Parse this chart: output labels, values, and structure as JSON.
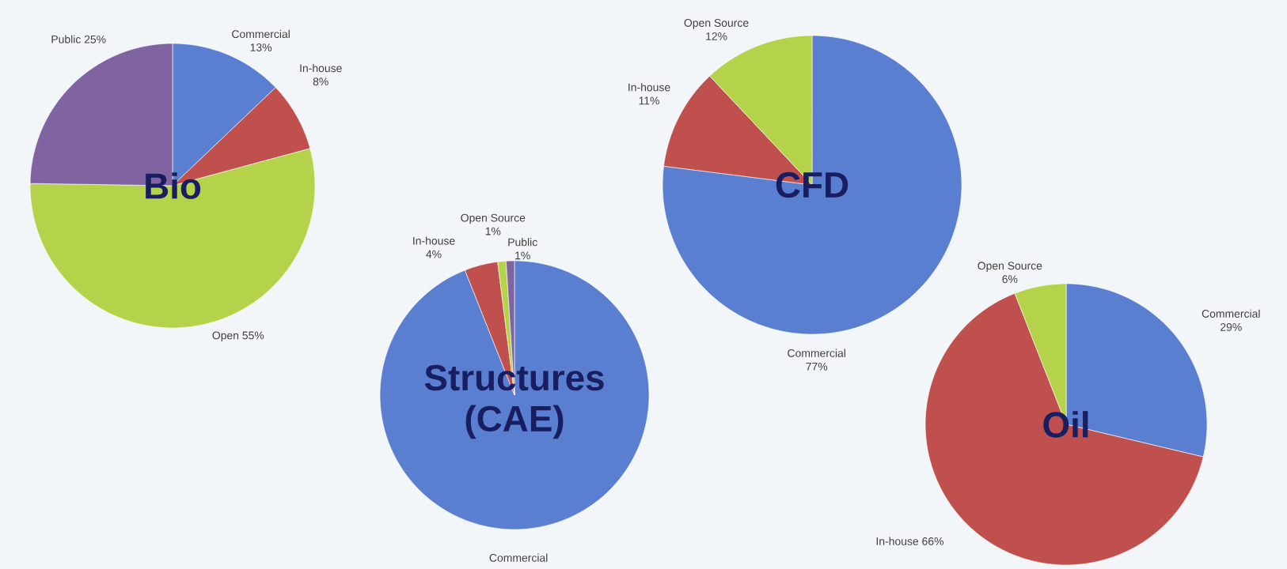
{
  "chart_data": [
    {
      "type": "pie",
      "title": "Bio",
      "categories": [
        "Commercial",
        "In-house",
        "Open",
        "Public"
      ],
      "values": [
        13,
        8,
        55,
        25
      ],
      "colors": [
        "#5b7fd0",
        "#c0504d",
        "#b5d34a",
        "#8064a2"
      ],
      "value_labels": [
        "13%",
        "8%",
        "55%",
        "25%"
      ]
    },
    {
      "type": "pie",
      "title": "Structures (CAE)",
      "categories": [
        "Commercial",
        "In-house",
        "Open Source",
        "Public"
      ],
      "values": [
        94,
        4,
        1,
        1
      ],
      "colors": [
        "#5b7fd0",
        "#c0504d",
        "#b5d34a",
        "#8064a2"
      ],
      "value_labels": [
        null,
        "4%",
        "1%",
        "1%"
      ]
    },
    {
      "type": "pie",
      "title": "CFD",
      "categories": [
        "Commercial",
        "In-house",
        "Open Source"
      ],
      "values": [
        77,
        11,
        12
      ],
      "colors": [
        "#5b7fd0",
        "#c0504d",
        "#b5d34a"
      ],
      "value_labels": [
        "77%",
        "11%",
        "12%"
      ]
    },
    {
      "type": "pie",
      "title": "Oil",
      "categories": [
        "Commercial",
        "In-house",
        "Open Source"
      ],
      "values": [
        29,
        66,
        6
      ],
      "colors": [
        "#5b7fd0",
        "#c0504d",
        "#b5d34a"
      ],
      "value_labels": [
        "29%",
        "66%",
        "6%"
      ]
    }
  ]
}
